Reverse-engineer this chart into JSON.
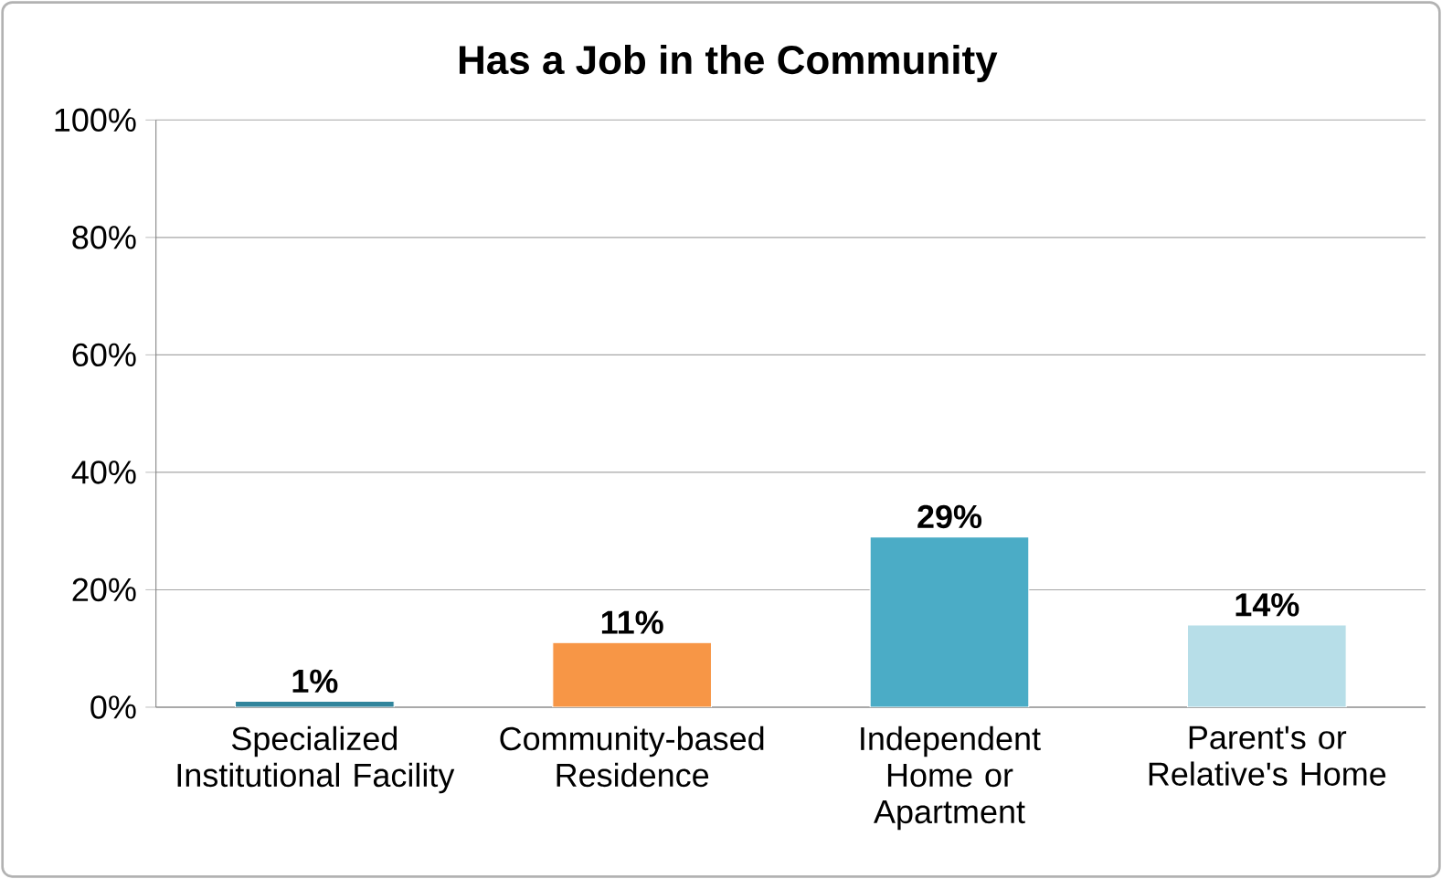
{
  "chart_data": {
    "type": "bar",
    "title": "Has a Job in the Community",
    "categories": [
      "Specialized Institutional Facility",
      "Community-based Residence",
      "Independent Home or Apartment",
      "Parent's or Relative's Home"
    ],
    "values": [
      1,
      11,
      29,
      14
    ],
    "colors": [
      "#31859c",
      "#f79646",
      "#4bacc6",
      "#b7dee8"
    ],
    "value_labels": [
      "1%",
      "11%",
      "29%",
      "14%"
    ],
    "ylim": [
      0,
      100
    ],
    "yticks": [
      {
        "value": 0,
        "label": "0%"
      },
      {
        "value": 20,
        "label": "20%"
      },
      {
        "value": 40,
        "label": "40%"
      },
      {
        "value": 60,
        "label": "60%"
      },
      {
        "value": 80,
        "label": "80%"
      },
      {
        "value": 100,
        "label": "100%"
      }
    ],
    "grid": "y"
  }
}
